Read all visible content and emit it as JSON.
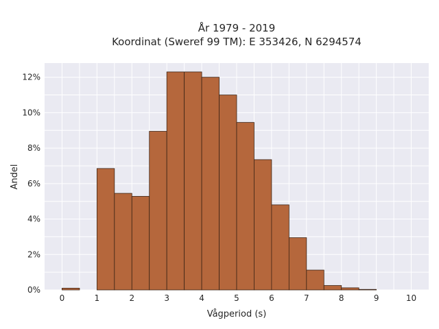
{
  "chart_data": {
    "type": "bar",
    "title": "År 1979 - 2019",
    "subtitle": "Koordinat (Sweref 99 TM): E 353426, N 6294574",
    "xlabel": "Vågperiod (s)",
    "ylabel": "Andel",
    "bin_width": 0.5,
    "bin_starts": [
      0,
      0.5,
      1,
      1.5,
      2,
      2.5,
      3,
      3.5,
      4,
      4.5,
      5,
      5.5,
      6,
      6.5,
      7,
      7.5,
      8,
      8.5,
      9,
      9.5
    ],
    "values": [
      0.1,
      0,
      6.85,
      5.45,
      5.28,
      8.95,
      12.3,
      12.3,
      12.0,
      11.0,
      9.45,
      7.35,
      4.8,
      2.95,
      1.12,
      0.25,
      0.12,
      0.03,
      0,
      0
    ],
    "xlim": [
      -0.5,
      10.5
    ],
    "ylim": [
      0,
      12.8
    ],
    "xticks": [
      "0",
      "1",
      "2",
      "3",
      "4",
      "5",
      "6",
      "7",
      "8",
      "9",
      "10"
    ],
    "yticks": [
      "0%",
      "2%",
      "4%",
      "6%",
      "8%",
      "10%",
      "12%"
    ],
    "grid": true,
    "bar_color": "#b5673c",
    "background_color": "#eaeaf2"
  }
}
